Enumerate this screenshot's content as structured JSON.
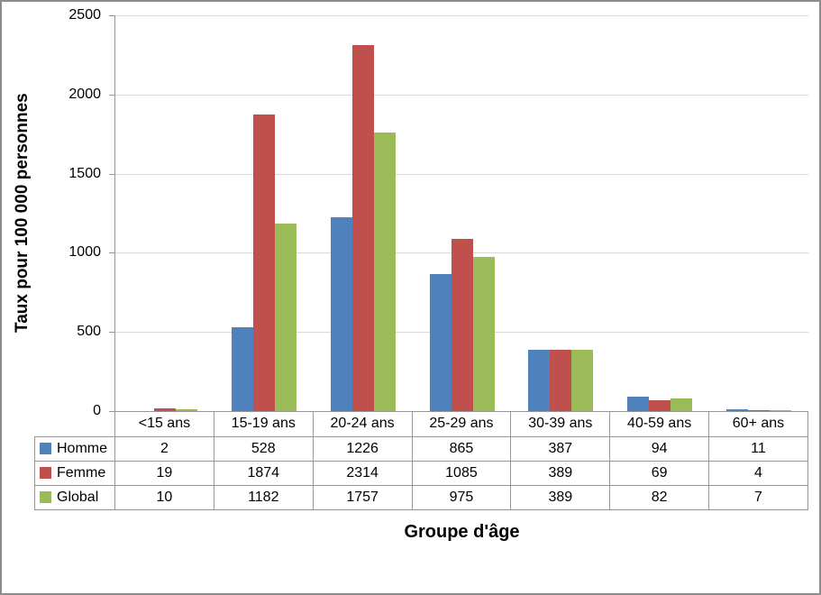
{
  "chart_data": {
    "type": "bar",
    "title": "",
    "xlabel": "Groupe d'âge",
    "ylabel": "Taux pour 100 000 personnes",
    "ylim": [
      0,
      2500
    ],
    "yticks": [
      0,
      500,
      1000,
      1500,
      2000,
      2500
    ],
    "grid": true,
    "legend_position": "data-table-left-column",
    "categories": [
      "<15 ans",
      "15-19 ans",
      "20-24 ans",
      "25-29 ans",
      "30-39 ans",
      "40-59 ans",
      "60+ ans"
    ],
    "series": [
      {
        "name": "Homme",
        "color": "#4F81BD",
        "values": [
          2,
          528,
          1226,
          865,
          387,
          94,
          11
        ]
      },
      {
        "name": "Femme",
        "color": "#C0504D",
        "values": [
          19,
          1874,
          2314,
          1085,
          389,
          69,
          4
        ]
      },
      {
        "name": "Global",
        "color": "#9BBB59",
        "values": [
          10,
          1182,
          1757,
          975,
          389,
          82,
          7
        ]
      }
    ],
    "colors": {
      "axis_line": "#969696",
      "gridline": "#D9D9D9",
      "table_border": "#969696",
      "frame_border": "#8C8C8C",
      "text": "#000000",
      "background": "#FFFFFF"
    }
  }
}
